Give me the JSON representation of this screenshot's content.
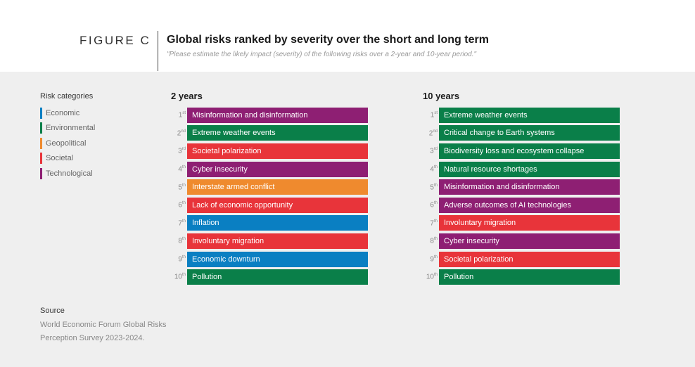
{
  "header": {
    "figure_label": "FIGURE C",
    "title": "Global risks ranked by severity over the short and long term",
    "subtitle": "\"Please estimate the likely impact (severity) of the following risks over a 2-year and 10-year period.\""
  },
  "legend": {
    "title": "Risk categories",
    "items": [
      {
        "label": "Economic",
        "color": "#0a7fc2"
      },
      {
        "label": "Environmental",
        "color": "#0a7f49"
      },
      {
        "label": "Geopolitical",
        "color": "#ef8a2e"
      },
      {
        "label": "Societal",
        "color": "#e8343a"
      },
      {
        "label": "Technological",
        "color": "#8e1f73"
      }
    ]
  },
  "columns": [
    {
      "heading": "2 years",
      "rows": [
        {
          "rank": "1",
          "suffix": "st",
          "label": "Misinformation and disinformation",
          "color": "#8e1f73"
        },
        {
          "rank": "2",
          "suffix": "nd",
          "label": "Extreme weather events",
          "color": "#0a7f49"
        },
        {
          "rank": "3",
          "suffix": "rd",
          "label": "Societal polarization",
          "color": "#e8343a"
        },
        {
          "rank": "4",
          "suffix": "th",
          "label": "Cyber insecurity",
          "color": "#8e1f73"
        },
        {
          "rank": "5",
          "suffix": "th",
          "label": "Interstate armed conflict",
          "color": "#ef8a2e"
        },
        {
          "rank": "6",
          "suffix": "th",
          "label": "Lack of economic opportunity",
          "color": "#e8343a"
        },
        {
          "rank": "7",
          "suffix": "th",
          "label": "Inflation",
          "color": "#0a7fc2"
        },
        {
          "rank": "8",
          "suffix": "th",
          "label": "Involuntary migration",
          "color": "#e8343a"
        },
        {
          "rank": "9",
          "suffix": "th",
          "label": "Economic downturn",
          "color": "#0a7fc2"
        },
        {
          "rank": "10",
          "suffix": "th",
          "label": "Pollution",
          "color": "#0a7f49"
        }
      ]
    },
    {
      "heading": "10 years",
      "rows": [
        {
          "rank": "1",
          "suffix": "st",
          "label": "Extreme weather events",
          "color": "#0a7f49"
        },
        {
          "rank": "2",
          "suffix": "nd",
          "label": "Critical change to Earth systems",
          "color": "#0a7f49"
        },
        {
          "rank": "3",
          "suffix": "rd",
          "label": "Biodiversity loss and ecosystem collapse",
          "color": "#0a7f49"
        },
        {
          "rank": "4",
          "suffix": "th",
          "label": "Natural resource shortages",
          "color": "#0a7f49"
        },
        {
          "rank": "5",
          "suffix": "th",
          "label": "Misinformation and disinformation",
          "color": "#8e1f73"
        },
        {
          "rank": "6",
          "suffix": "th",
          "label": "Adverse outcomes of AI technologies",
          "color": "#8e1f73"
        },
        {
          "rank": "7",
          "suffix": "th",
          "label": "Involuntary migration",
          "color": "#e8343a"
        },
        {
          "rank": "8",
          "suffix": "th",
          "label": "Cyber insecurity",
          "color": "#8e1f73"
        },
        {
          "rank": "9",
          "suffix": "th",
          "label": "Societal polarization",
          "color": "#e8343a"
        },
        {
          "rank": "10",
          "suffix": "th",
          "label": "Pollution",
          "color": "#0a7f49"
        }
      ]
    }
  ],
  "source": {
    "title": "Source",
    "text": "World Economic Forum Global Risks Perception Survey 2023-2024."
  }
}
